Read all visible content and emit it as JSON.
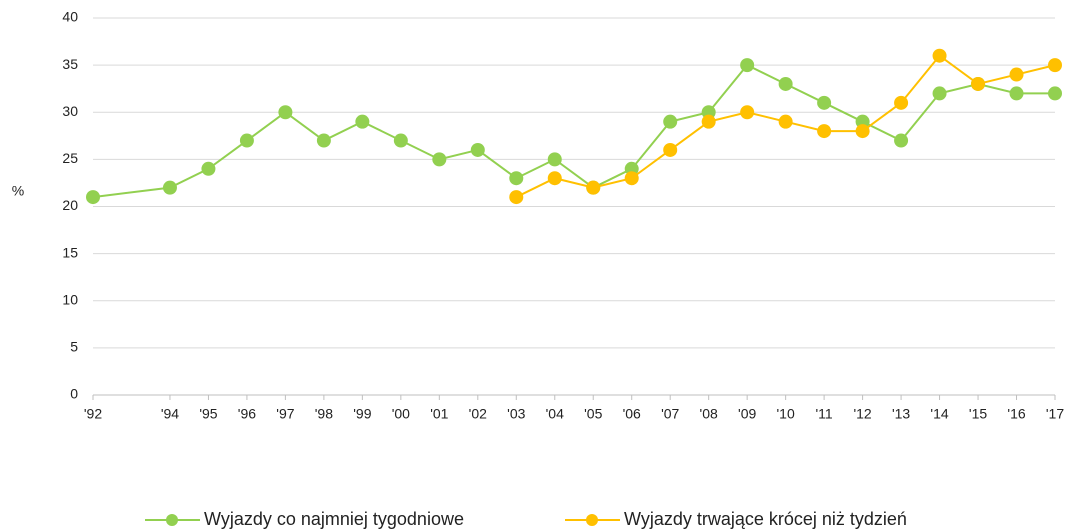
{
  "chart_data": {
    "type": "line",
    "y_label": "%",
    "x": [
      1992,
      1994,
      1995,
      1996,
      1997,
      1998,
      1999,
      2000,
      2001,
      2002,
      2003,
      2004,
      2005,
      2006,
      2007,
      2008,
      2009,
      2010,
      2011,
      2012,
      2013,
      2014,
      2015,
      2016,
      2017
    ],
    "xlim": [
      1992,
      2017
    ],
    "xticks": [
      {
        "value": 1992,
        "label": "'92"
      },
      {
        "value": 1994,
        "label": "'94"
      },
      {
        "value": 1995,
        "label": "'95"
      },
      {
        "value": 1996,
        "label": "'96"
      },
      {
        "value": 1997,
        "label": "'97"
      },
      {
        "value": 1998,
        "label": "'98"
      },
      {
        "value": 1999,
        "label": "'99"
      },
      {
        "value": 2000,
        "label": "'00"
      },
      {
        "value": 2001,
        "label": "'01"
      },
      {
        "value": 2002,
        "label": "'02"
      },
      {
        "value": 2003,
        "label": "'03"
      },
      {
        "value": 2004,
        "label": "'04"
      },
      {
        "value": 2005,
        "label": "'05"
      },
      {
        "value": 2006,
        "label": "'06"
      },
      {
        "value": 2007,
        "label": "'07"
      },
      {
        "value": 2008,
        "label": "'08"
      },
      {
        "value": 2009,
        "label": "'09"
      },
      {
        "value": 2010,
        "label": "'10"
      },
      {
        "value": 2011,
        "label": "'11"
      },
      {
        "value": 2012,
        "label": "'12"
      },
      {
        "value": 2013,
        "label": "'13"
      },
      {
        "value": 2014,
        "label": "'14"
      },
      {
        "value": 2015,
        "label": "'15"
      },
      {
        "value": 2016,
        "label": "'16"
      },
      {
        "value": 2017,
        "label": "'17"
      }
    ],
    "ylim": [
      0,
      40
    ],
    "yticks": [
      0,
      5,
      10,
      15,
      20,
      25,
      30,
      35,
      40
    ],
    "grid": true,
    "legend": "bottom",
    "series": [
      {
        "name": "Wyjazdy co najmniej tygodniowe",
        "color": "#92d050",
        "values": [
          21,
          22,
          24,
          27,
          30,
          27,
          29,
          27,
          25,
          26,
          23,
          25,
          22,
          24,
          29,
          30,
          35,
          33,
          31,
          29,
          27,
          32,
          33,
          32,
          32
        ]
      },
      {
        "name": "Wyjazdy trwające krócej niż tydzień",
        "color": "#ffc000",
        "values": [
          null,
          null,
          null,
          null,
          null,
          null,
          null,
          null,
          null,
          null,
          21,
          23,
          22,
          23,
          26,
          29,
          30,
          29,
          28,
          28,
          31,
          36,
          33,
          34,
          35
        ]
      }
    ]
  }
}
